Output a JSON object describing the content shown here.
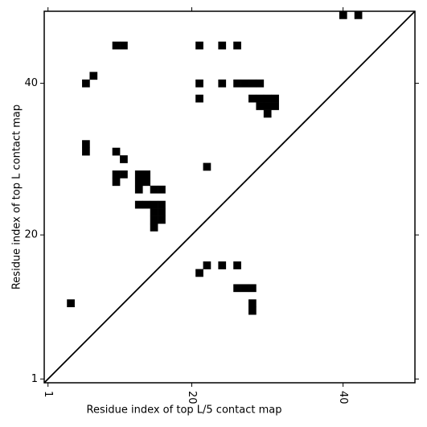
{
  "chart_data": {
    "type": "heatmap",
    "xlabel": "Residue index of top L/5 contact map",
    "ylabel": "Residue index of top L contact map",
    "xlim": [
      0.5,
      49.5
    ],
    "ylim": [
      0.5,
      49.5
    ],
    "xticks": [
      1,
      20,
      40
    ],
    "yticks": [
      1,
      20,
      40
    ],
    "color": "#000000",
    "x": [
      40,
      42,
      10,
      11,
      21,
      24,
      26,
      7,
      6,
      21,
      24,
      26,
      27,
      28,
      29,
      21,
      28,
      29,
      30,
      31,
      29,
      30,
      31,
      30,
      6,
      6,
      10,
      11,
      22,
      10,
      11,
      13,
      14,
      10,
      13,
      14,
      13,
      15,
      16,
      13,
      14,
      15,
      16,
      15,
      16,
      15,
      16,
      15,
      22,
      24,
      26,
      21,
      26,
      27,
      28,
      4,
      28,
      28
    ],
    "y": [
      49,
      49,
      45,
      45,
      45,
      45,
      45,
      41,
      40,
      40,
      40,
      40,
      40,
      40,
      40,
      38,
      38,
      38,
      38,
      38,
      37,
      37,
      37,
      36,
      32,
      31,
      31,
      30,
      29,
      28,
      28,
      28,
      28,
      27,
      27,
      27,
      26,
      26,
      26,
      24,
      24,
      24,
      24,
      23,
      23,
      22,
      22,
      21,
      16,
      16,
      16,
      15,
      13,
      13,
      13,
      11,
      11,
      10
    ]
  }
}
